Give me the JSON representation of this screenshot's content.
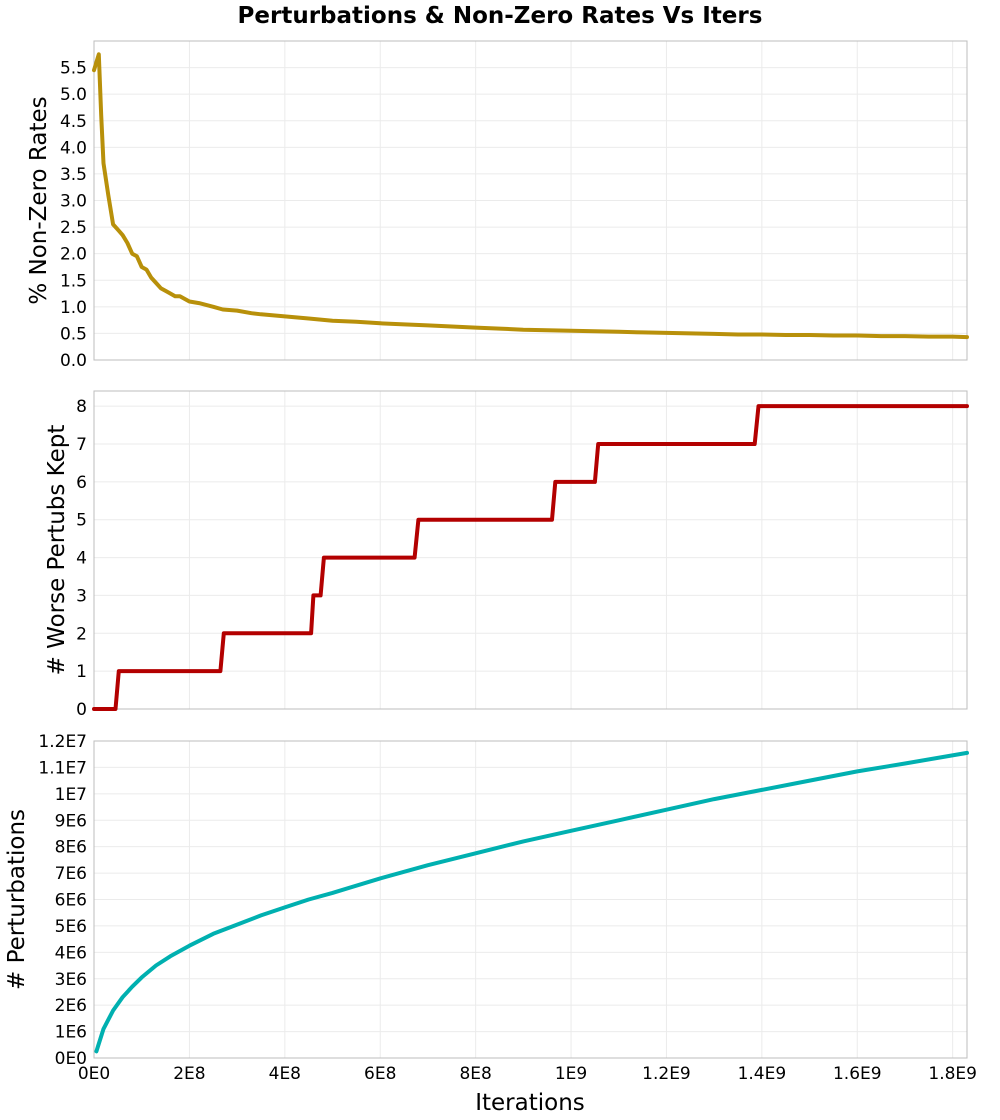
{
  "chart_data": {
    "title": "Perturbations & Non-Zero Rates Vs Iters",
    "xlabel": "Iterations",
    "x_ticks": [
      {
        "v": 0,
        "label": "0E0"
      },
      {
        "v": 200000000,
        "label": "2E8"
      },
      {
        "v": 400000000,
        "label": "4E8"
      },
      {
        "v": 600000000,
        "label": "6E8"
      },
      {
        "v": 800000000,
        "label": "8E8"
      },
      {
        "v": 1000000000,
        "label": "1E9"
      },
      {
        "v": 1200000000,
        "label": "1.2E9"
      },
      {
        "v": 1400000000,
        "label": "1.4E9"
      },
      {
        "v": 1600000000,
        "label": "1.6E9"
      },
      {
        "v": 1800000000,
        "label": "1.8E9"
      }
    ],
    "xlim": [
      0,
      1830000000
    ],
    "grid": true,
    "panels": [
      {
        "type": "line",
        "ylabel": "% Non-Zero Rates",
        "ylim": [
          0,
          6.0
        ],
        "y_ticks": [
          {
            "v": 0.0,
            "label": "0.0"
          },
          {
            "v": 0.5,
            "label": "0.5"
          },
          {
            "v": 1.0,
            "label": "1.0"
          },
          {
            "v": 1.5,
            "label": "1.5"
          },
          {
            "v": 2.0,
            "label": "2.0"
          },
          {
            "v": 2.5,
            "label": "2.5"
          },
          {
            "v": 3.0,
            "label": "3.0"
          },
          {
            "v": 3.5,
            "label": "3.5"
          },
          {
            "v": 4.0,
            "label": "4.0"
          },
          {
            "v": 4.5,
            "label": "4.5"
          },
          {
            "v": 5.0,
            "label": "5.0"
          },
          {
            "v": 5.5,
            "label": "5.5"
          }
        ],
        "color": "#b8900a",
        "x": [
          0,
          10000000,
          15000000,
          20000000,
          30000000,
          40000000,
          50000000,
          60000000,
          70000000,
          80000000,
          90000000,
          100000000,
          110000000,
          120000000,
          130000000,
          140000000,
          150000000,
          160000000,
          170000000,
          180000000,
          200000000,
          220000000,
          250000000,
          270000000,
          300000000,
          330000000,
          350000000,
          400000000,
          450000000,
          500000000,
          550000000,
          600000000,
          650000000,
          700000000,
          750000000,
          800000000,
          850000000,
          900000000,
          950000000,
          1000000000,
          1050000000,
          1100000000,
          1150000000,
          1200000000,
          1250000000,
          1300000000,
          1350000000,
          1400000000,
          1450000000,
          1500000000,
          1550000000,
          1600000000,
          1650000000,
          1700000000,
          1750000000,
          1800000000,
          1830000000
        ],
        "y": [
          5.45,
          5.75,
          4.6,
          3.7,
          3.1,
          2.55,
          2.45,
          2.35,
          2.2,
          2.0,
          1.95,
          1.75,
          1.7,
          1.55,
          1.45,
          1.35,
          1.3,
          1.25,
          1.2,
          1.2,
          1.1,
          1.07,
          1.0,
          0.95,
          0.93,
          0.88,
          0.86,
          0.82,
          0.78,
          0.74,
          0.72,
          0.69,
          0.67,
          0.65,
          0.63,
          0.61,
          0.59,
          0.57,
          0.56,
          0.55,
          0.54,
          0.53,
          0.52,
          0.51,
          0.5,
          0.49,
          0.48,
          0.48,
          0.47,
          0.47,
          0.46,
          0.46,
          0.45,
          0.45,
          0.44,
          0.44,
          0.43
        ]
      },
      {
        "type": "line",
        "ylabel": "# Worse Pertubs Kept",
        "ylim": [
          0,
          8.4
        ],
        "y_ticks": [
          {
            "v": 0,
            "label": "0"
          },
          {
            "v": 1,
            "label": "1"
          },
          {
            "v": 2,
            "label": "2"
          },
          {
            "v": 3,
            "label": "3"
          },
          {
            "v": 4,
            "label": "4"
          },
          {
            "v": 5,
            "label": "5"
          },
          {
            "v": 6,
            "label": "6"
          },
          {
            "v": 7,
            "label": "7"
          },
          {
            "v": 8,
            "label": "8"
          }
        ],
        "color": "#b30000",
        "x": [
          0,
          45000000,
          52000000,
          265000000,
          272000000,
          455000000,
          460000000,
          475000000,
          482000000,
          672000000,
          680000000,
          960000000,
          967000000,
          1050000000,
          1057000000,
          1385000000,
          1393000000,
          1830000000
        ],
        "y": [
          0,
          0,
          1,
          1,
          2,
          2,
          3,
          3,
          4,
          4,
          5,
          5,
          6,
          6,
          7,
          7,
          8,
          8
        ]
      },
      {
        "type": "line",
        "ylabel": "# Perturbations",
        "ylim": [
          0,
          12000000
        ],
        "y_ticks": [
          {
            "v": 0,
            "label": "0E0"
          },
          {
            "v": 1000000,
            "label": "1E6"
          },
          {
            "v": 2000000,
            "label": "2E6"
          },
          {
            "v": 3000000,
            "label": "3E6"
          },
          {
            "v": 4000000,
            "label": "4E6"
          },
          {
            "v": 5000000,
            "label": "5E6"
          },
          {
            "v": 6000000,
            "label": "6E6"
          },
          {
            "v": 7000000,
            "label": "7E6"
          },
          {
            "v": 8000000,
            "label": "8E6"
          },
          {
            "v": 9000000,
            "label": "9E6"
          },
          {
            "v": 10000000,
            "label": "1E7"
          },
          {
            "v": 11000000,
            "label": "1.1E7"
          },
          {
            "v": 12000000,
            "label": "1.2E7"
          }
        ],
        "color": "#00b0b0",
        "x": [
          5000000,
          20000000,
          40000000,
          60000000,
          80000000,
          100000000,
          130000000,
          160000000,
          200000000,
          250000000,
          300000000,
          350000000,
          400000000,
          450000000,
          500000000,
          600000000,
          700000000,
          800000000,
          900000000,
          1000000000,
          1100000000,
          1200000000,
          1300000000,
          1400000000,
          1500000000,
          1600000000,
          1700000000,
          1830000000
        ],
        "y": [
          250000,
          1100000,
          1800000,
          2300000,
          2700000,
          3050000,
          3500000,
          3850000,
          4250000,
          4700000,
          5050000,
          5400000,
          5700000,
          6000000,
          6250000,
          6800000,
          7300000,
          7750000,
          8200000,
          8600000,
          9000000,
          9400000,
          9800000,
          10150000,
          10500000,
          10850000,
          11150000,
          11550000
        ]
      }
    ]
  }
}
